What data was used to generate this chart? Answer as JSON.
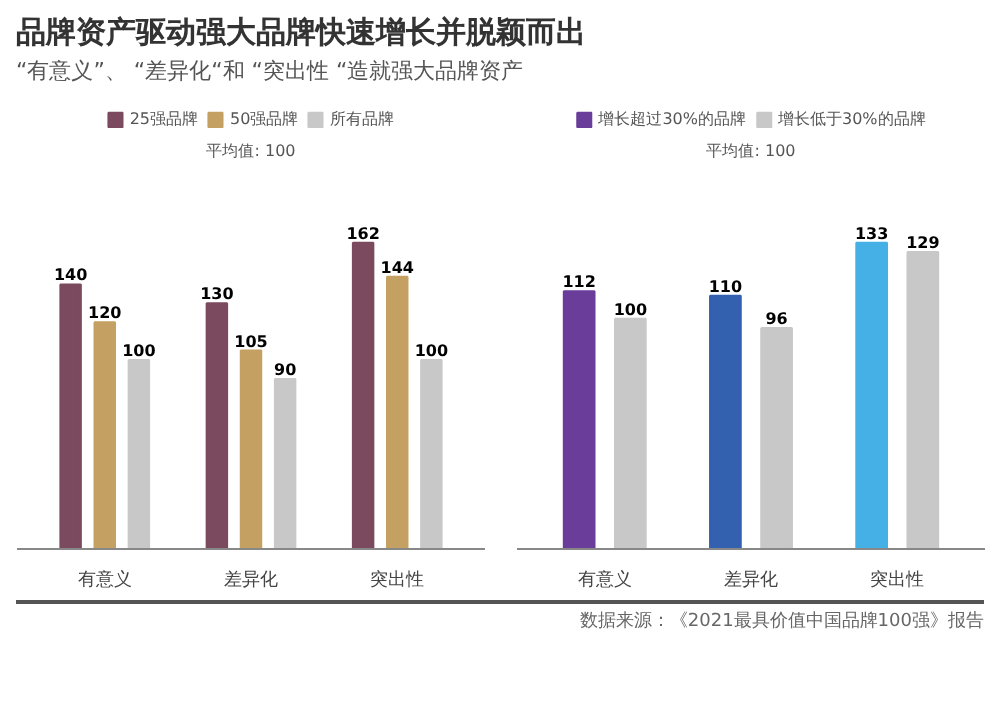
{
  "chart_data": [
    {
      "type": "bar",
      "title": "品牌资产驱动强大品牌快速增长并脱颖而出",
      "subtitle": "“有意义”、 “差异化“和 “突出性 “造就强大品牌资产",
      "categories": [
        "有意义",
        "差异化",
        "突出性"
      ],
      "series": [
        {
          "name": "25强品牌",
          "color": "#7b4a5e",
          "values": [
            140,
            130,
            162
          ]
        },
        {
          "name": "50强品牌",
          "color": "#c5a063",
          "values": [
            120,
            105,
            144
          ]
        },
        {
          "name": "所有品牌",
          "color": "#c8c8c8",
          "values": [
            100,
            90,
            100
          ]
        }
      ],
      "data_labels": true,
      "legend": "top",
      "annotations": [
        "平均值: 100"
      ]
    },
    {
      "type": "bar",
      "categories": [
        "有意义",
        "差异化",
        "突出性"
      ],
      "series": [
        {
          "name": "增长超过30%的品牌",
          "colors": [
            "#6a3d9a",
            "#3460b0",
            "#45b0e5"
          ],
          "values": [
            112,
            110,
            133
          ]
        },
        {
          "name": "增长低于30%的品牌",
          "color": "#c8c8c8",
          "values": [
            100,
            96,
            129
          ]
        }
      ],
      "data_labels": true,
      "legend": "top",
      "annotations": [
        "平均值: 100",
        "数据来源：《2021最具价值中国品牌100强》报告"
      ]
    }
  ]
}
